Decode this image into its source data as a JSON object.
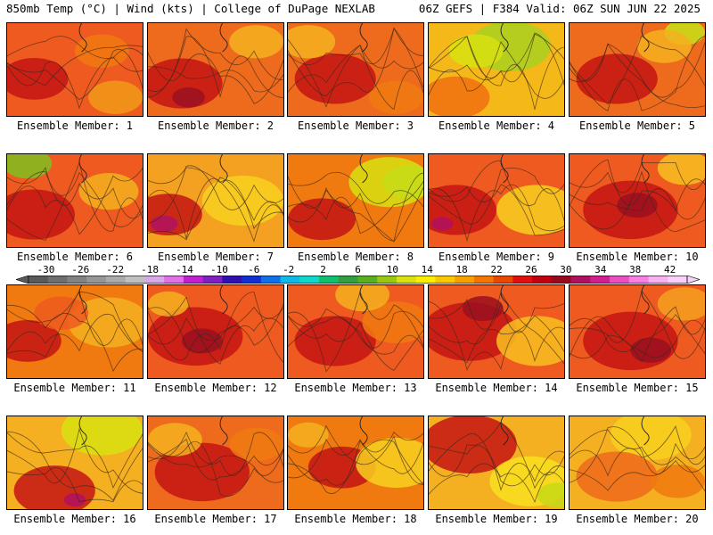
{
  "header": {
    "left": "850mb Temp (°C) | Wind (kts) | College of DuPage NEXLAB",
    "right": "06Z GEFS | F384 Valid: 06Z SUN JUN 22 2025"
  },
  "members": [
    {
      "label": "Ensemble Member: 1",
      "base": "#ee5a1f",
      "patches": [
        [
          "#c41414",
          0.2,
          0.6,
          0.25
        ],
        [
          "#f07a10",
          0.7,
          0.3,
          0.2
        ],
        [
          "#f09a18",
          0.8,
          0.8,
          0.2
        ]
      ]
    },
    {
      "label": "Ensemble Member: 2",
      "base": "#ee6a1c",
      "patches": [
        [
          "#c41414",
          0.25,
          0.65,
          0.3
        ],
        [
          "#f4b020",
          0.8,
          0.2,
          0.2
        ],
        [
          "#9a1020",
          0.3,
          0.8,
          0.12
        ]
      ]
    },
    {
      "label": "Ensemble Member: 3",
      "base": "#ee6a1c",
      "patches": [
        [
          "#c41414",
          0.35,
          0.6,
          0.3
        ],
        [
          "#f4b020",
          0.15,
          0.2,
          0.2
        ],
        [
          "#f07a10",
          0.8,
          0.8,
          0.2
        ]
      ]
    },
    {
      "label": "Ensemble Member: 4",
      "base": "#f4b818",
      "patches": [
        [
          "#a8d020",
          0.6,
          0.25,
          0.3
        ],
        [
          "#f07010",
          0.2,
          0.8,
          0.25
        ],
        [
          "#d8e010",
          0.35,
          0.3,
          0.2
        ]
      ]
    },
    {
      "label": "Ensemble Member: 5",
      "base": "#ee6a1c",
      "patches": [
        [
          "#c41414",
          0.35,
          0.6,
          0.3
        ],
        [
          "#c8e018",
          0.85,
          0.1,
          0.15
        ],
        [
          "#f4b020",
          0.7,
          0.25,
          0.2
        ]
      ]
    },
    {
      "label": "Ensemble Member: 6",
      "base": "#ee5a1f",
      "patches": [
        [
          "#c41414",
          0.2,
          0.65,
          0.3
        ],
        [
          "#80c020",
          0.15,
          0.1,
          0.18
        ],
        [
          "#f4b020",
          0.75,
          0.4,
          0.22
        ]
      ]
    },
    {
      "label": "Ensemble Member: 7",
      "base": "#f4a020",
      "patches": [
        [
          "#c41414",
          0.15,
          0.65,
          0.25
        ],
        [
          "#b01060",
          0.12,
          0.75,
          0.1
        ],
        [
          "#f8d020",
          0.7,
          0.5,
          0.3
        ]
      ]
    },
    {
      "label": "Ensemble Member: 8",
      "base": "#f07a10",
      "patches": [
        [
          "#60c040",
          0.9,
          0.3,
          0.2
        ],
        [
          "#d8e010",
          0.75,
          0.3,
          0.3
        ],
        [
          "#c41414",
          0.25,
          0.7,
          0.25
        ]
      ]
    },
    {
      "label": "Ensemble Member: 9",
      "base": "#ee5a1f",
      "patches": [
        [
          "#c41414",
          0.2,
          0.6,
          0.3
        ],
        [
          "#f8d020",
          0.8,
          0.6,
          0.3
        ],
        [
          "#b01060",
          0.1,
          0.75,
          0.08
        ]
      ]
    },
    {
      "label": "Ensemble Member: 10",
      "base": "#ee5a1f",
      "patches": [
        [
          "#c41414",
          0.45,
          0.6,
          0.35
        ],
        [
          "#f8c020",
          0.85,
          0.15,
          0.2
        ],
        [
          "#9a1020",
          0.5,
          0.55,
          0.15
        ]
      ]
    },
    {
      "label": "Ensemble Member: 11",
      "base": "#f07a10",
      "patches": [
        [
          "#c41414",
          0.15,
          0.6,
          0.25
        ],
        [
          "#f4b020",
          0.75,
          0.4,
          0.3
        ],
        [
          "#ee5a1f",
          0.4,
          0.3,
          0.2
        ]
      ]
    },
    {
      "label": "Ensemble Member: 12",
      "base": "#ee5a1f",
      "patches": [
        [
          "#c41414",
          0.35,
          0.55,
          0.35
        ],
        [
          "#f4b020",
          0.15,
          0.2,
          0.15
        ],
        [
          "#9a1020",
          0.4,
          0.6,
          0.15
        ]
      ]
    },
    {
      "label": "Ensemble Member: 13",
      "base": "#ee5a1f",
      "patches": [
        [
          "#c41414",
          0.35,
          0.6,
          0.3
        ],
        [
          "#f07a10",
          0.8,
          0.4,
          0.25
        ],
        [
          "#f4b020",
          0.55,
          0.1,
          0.2
        ]
      ]
    },
    {
      "label": "Ensemble Member: 14",
      "base": "#ee5a1f",
      "patches": [
        [
          "#c41414",
          0.3,
          0.5,
          0.35
        ],
        [
          "#f8c020",
          0.8,
          0.6,
          0.3
        ],
        [
          "#9a1020",
          0.4,
          0.25,
          0.15
        ]
      ]
    },
    {
      "label": "Ensemble Member: 15",
      "base": "#ee5a1f",
      "patches": [
        [
          "#c41414",
          0.45,
          0.6,
          0.35
        ],
        [
          "#f4a020",
          0.85,
          0.2,
          0.2
        ],
        [
          "#9a1020",
          0.6,
          0.7,
          0.15
        ]
      ]
    },
    {
      "label": "Ensemble Member: 16",
      "base": "#f4b020",
      "patches": [
        [
          "#d8e010",
          0.7,
          0.15,
          0.3
        ],
        [
          "#c41414",
          0.35,
          0.8,
          0.3
        ],
        [
          "#b01060",
          0.5,
          0.9,
          0.08
        ]
      ]
    },
    {
      "label": "Ensemble Member: 17",
      "base": "#ee6a1c",
      "patches": [
        [
          "#c41414",
          0.4,
          0.6,
          0.35
        ],
        [
          "#f4b020",
          0.2,
          0.25,
          0.2
        ],
        [
          "#f07a10",
          0.8,
          0.3,
          0.2
        ]
      ]
    },
    {
      "label": "Ensemble Member: 18",
      "base": "#f07a10",
      "patches": [
        [
          "#c41414",
          0.4,
          0.55,
          0.25
        ],
        [
          "#f8d020",
          0.8,
          0.5,
          0.3
        ],
        [
          "#f4b020",
          0.15,
          0.2,
          0.15
        ]
      ]
    },
    {
      "label": "Ensemble Member: 19",
      "base": "#f4b020",
      "patches": [
        [
          "#c41414",
          0.3,
          0.3,
          0.35
        ],
        [
          "#f8e020",
          0.75,
          0.7,
          0.3
        ],
        [
          "#c8d818",
          0.95,
          0.85,
          0.15
        ]
      ]
    },
    {
      "label": "Ensemble Member: 20",
      "base": "#f4b020",
      "patches": [
        [
          "#f8d020",
          0.6,
          0.2,
          0.3
        ],
        [
          "#ee6a1c",
          0.35,
          0.65,
          0.3
        ],
        [
          "#f07a10",
          0.8,
          0.7,
          0.2
        ]
      ]
    }
  ],
  "colorbar": {
    "ticks": [
      "-30",
      "-26",
      "-22",
      "-18",
      "-14",
      "-10",
      "-6",
      "-2",
      "2",
      "6",
      "10",
      "14",
      "18",
      "22",
      "26",
      "30",
      "34",
      "38",
      "42"
    ],
    "colors": [
      "#5a5a5a",
      "#6e6e6e",
      "#828282",
      "#969696",
      "#aaaaaa",
      "#c0c0c0",
      "#d8a8e8",
      "#e070e8",
      "#c020d0",
      "#8020c0",
      "#3010b0",
      "#1030d0",
      "#1070e8",
      "#10b8e8",
      "#10d8c8",
      "#10c070",
      "#30a040",
      "#58b020",
      "#98c810",
      "#d8e010",
      "#f8f000",
      "#f8c800",
      "#f8a000",
      "#f07800",
      "#e84800",
      "#e01010",
      "#c00010",
      "#980820",
      "#b01060",
      "#d02090",
      "#e850c0",
      "#f880e0",
      "#f8b0f0",
      "#f8d0f8"
    ],
    "min": -32,
    "max": 44,
    "colors_meaning": "850mb temperature °C color fill scale"
  }
}
